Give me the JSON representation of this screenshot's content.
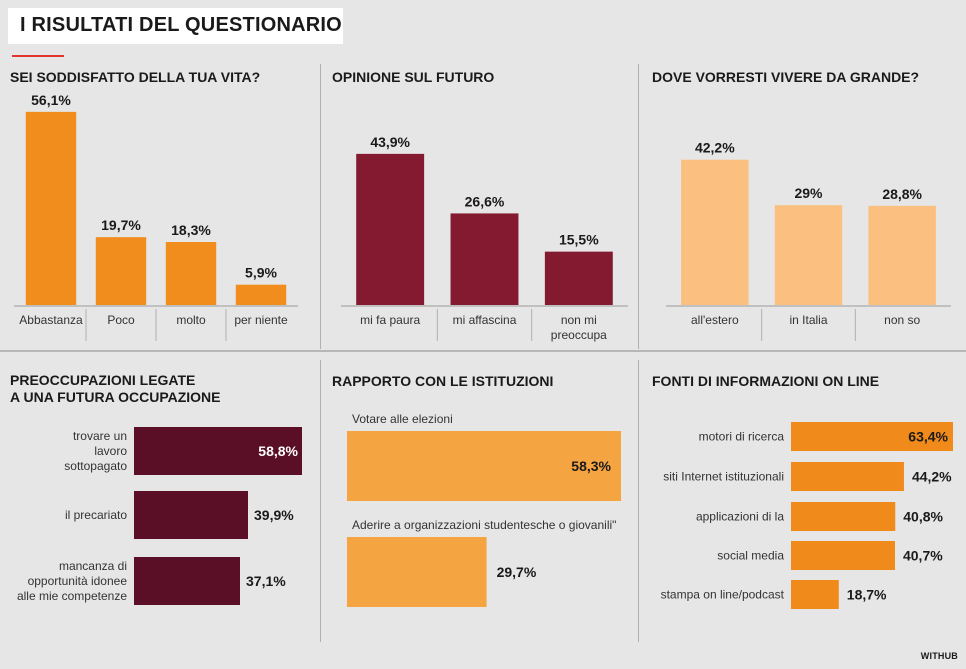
{
  "header": {
    "title": "I RISULTATI DEL QUESTIONARIO",
    "credit": "WITHUB"
  },
  "colors": {
    "orange": "#f18d1d",
    "maroon": "#841a2f",
    "peach": "#fbc080",
    "dark_plum": "#5b0f26",
    "light_orange": "#f5a442",
    "bright_orange": "#f08a1b"
  },
  "chart_data": [
    {
      "type": "bar",
      "title": "SEI SODDISFATTO DELLA TUA VITA?",
      "categories": [
        "Abbastanza",
        "Poco",
        "molto",
        "per niente"
      ],
      "values": [
        56.1,
        19.7,
        18.3,
        5.9
      ],
      "value_labels": [
        "56,1%",
        "19,7%",
        "18,3%",
        "5,9%"
      ],
      "color": "#f18d1d"
    },
    {
      "type": "bar",
      "title": "OPINIONE SUL FUTURO",
      "categories": [
        "mi fa paura",
        "mi affascina",
        "non mi preoccupa"
      ],
      "values": [
        43.9,
        26.6,
        15.5
      ],
      "value_labels": [
        "43,9%",
        "26,6%",
        "15,5%"
      ],
      "color": "#841a2f"
    },
    {
      "type": "bar",
      "title": "DOVE VORRESTI VIVERE DA GRANDE?",
      "categories": [
        "all'estero",
        "in Italia",
        "non so"
      ],
      "values": [
        42.2,
        29,
        28.8
      ],
      "value_labels": [
        "42,2%",
        "29%",
        "28,8%"
      ],
      "color": "#fbc080"
    },
    {
      "type": "bar",
      "orientation": "horizontal",
      "title": "PREOCCUPAZIONI LEGATE A UNA FUTURA OCCUPAZIONE",
      "categories": [
        "trovare un lavoro sottopagato",
        "il precariato",
        "mancanza di opportunità idonee alle mie competenze"
      ],
      "values": [
        58.8,
        39.9,
        37.1
      ],
      "value_labels": [
        "58,8%",
        "39,9%",
        "37,1%"
      ],
      "color": "#5b0f26"
    },
    {
      "type": "bar",
      "orientation": "horizontal",
      "title": "RAPPORTO CON LE ISTITUZIONI",
      "categories": [
        "Votare alle elezioni",
        "Aderire a organizzazioni studentesche o giovanili\""
      ],
      "values": [
        58.3,
        29.7
      ],
      "value_labels": [
        "58,3%",
        "29,7%"
      ],
      "color": "#f5a442"
    },
    {
      "type": "bar",
      "orientation": "horizontal",
      "title": "FONTI DI INFORMAZIONI ON LINE",
      "categories": [
        "motori di ricerca",
        "siti Internet istituzionali",
        "applicazioni di la",
        "social media",
        "stampa on line/podcast"
      ],
      "values": [
        63.4,
        44.2,
        40.8,
        40.7,
        18.7
      ],
      "value_labels": [
        "63,4%",
        "44,2%",
        "40,8%",
        "40,7%",
        "18,7%"
      ],
      "color": "#f08a1b"
    }
  ]
}
